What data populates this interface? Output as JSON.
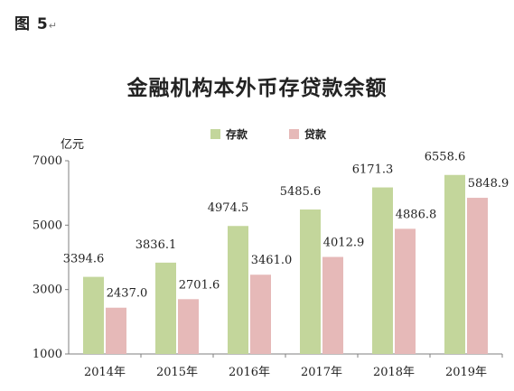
{
  "figure_label": "图 5",
  "chart_data": {
    "type": "bar",
    "title": "金融机构本外币存贷款余额",
    "ylabel": "亿元",
    "xlabel": "",
    "categories": [
      "2014年",
      "2015年",
      "2016年",
      "2017年",
      "2018年",
      "2019年"
    ],
    "series": [
      {
        "name": "存款",
        "color": "#c3d69b",
        "values": [
          3394.6,
          3836.1,
          4974.5,
          5485.6,
          6171.3,
          6558.6
        ],
        "labels": [
          "3394.6",
          "3836.1",
          "4974.5",
          "5485.6",
          "6171.3",
          "6558.6"
        ]
      },
      {
        "name": "贷款",
        "color": "#e6b9b8",
        "values": [
          2437.0,
          2701.6,
          3461.0,
          4012.9,
          4886.8,
          5848.9
        ],
        "labels": [
          "2437.0",
          "2701.6",
          "3461.0",
          "4012.9",
          "4886.8",
          "5848.9"
        ]
      }
    ],
    "ylim": [
      1000,
      7000
    ],
    "yticks": [
      1000,
      3000,
      5000,
      7000
    ],
    "ytick_labels": [
      "1000",
      "3000",
      "5000",
      "7000"
    ],
    "grid": false,
    "legend_position": "top-center"
  }
}
